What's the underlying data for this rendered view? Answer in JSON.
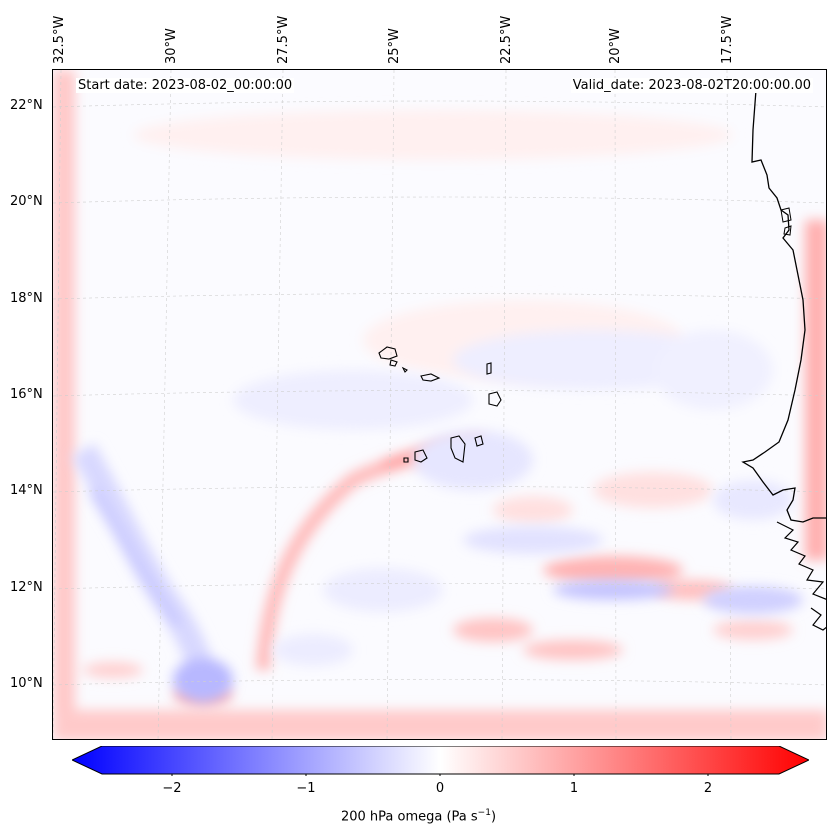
{
  "header": {
    "start_date": "Start date: 2023-08-02_00:00:00",
    "valid_date": "Valid_date: 2023-08-02T20:00:00.00"
  },
  "axes": {
    "longitude_labels": [
      "32.5°W",
      "30°W",
      "27.5°W",
      "25°W",
      "22.5°W",
      "20°W",
      "17.5°W"
    ],
    "latitude_labels": [
      "22°N",
      "20°N",
      "18°N",
      "16°N",
      "14°N",
      "12°N",
      "10°N"
    ]
  },
  "colorbar": {
    "label_prefix": "200 hPa omega (Pa s",
    "label_exp": "−1",
    "label_suffix": ")",
    "ticks": [
      "−2",
      "−1",
      "0",
      "1",
      "2"
    ],
    "range": [
      -2.5,
      2.5
    ],
    "colors": {
      "negative": "#0000ff",
      "zero": "#ffffff",
      "positive": "#ff0000"
    }
  },
  "map": {
    "field": "200 hPa omega",
    "region": "Cabo Verde / West African coast",
    "coastline_color": "#000000",
    "gridline_color": "#c8c8c8"
  }
}
